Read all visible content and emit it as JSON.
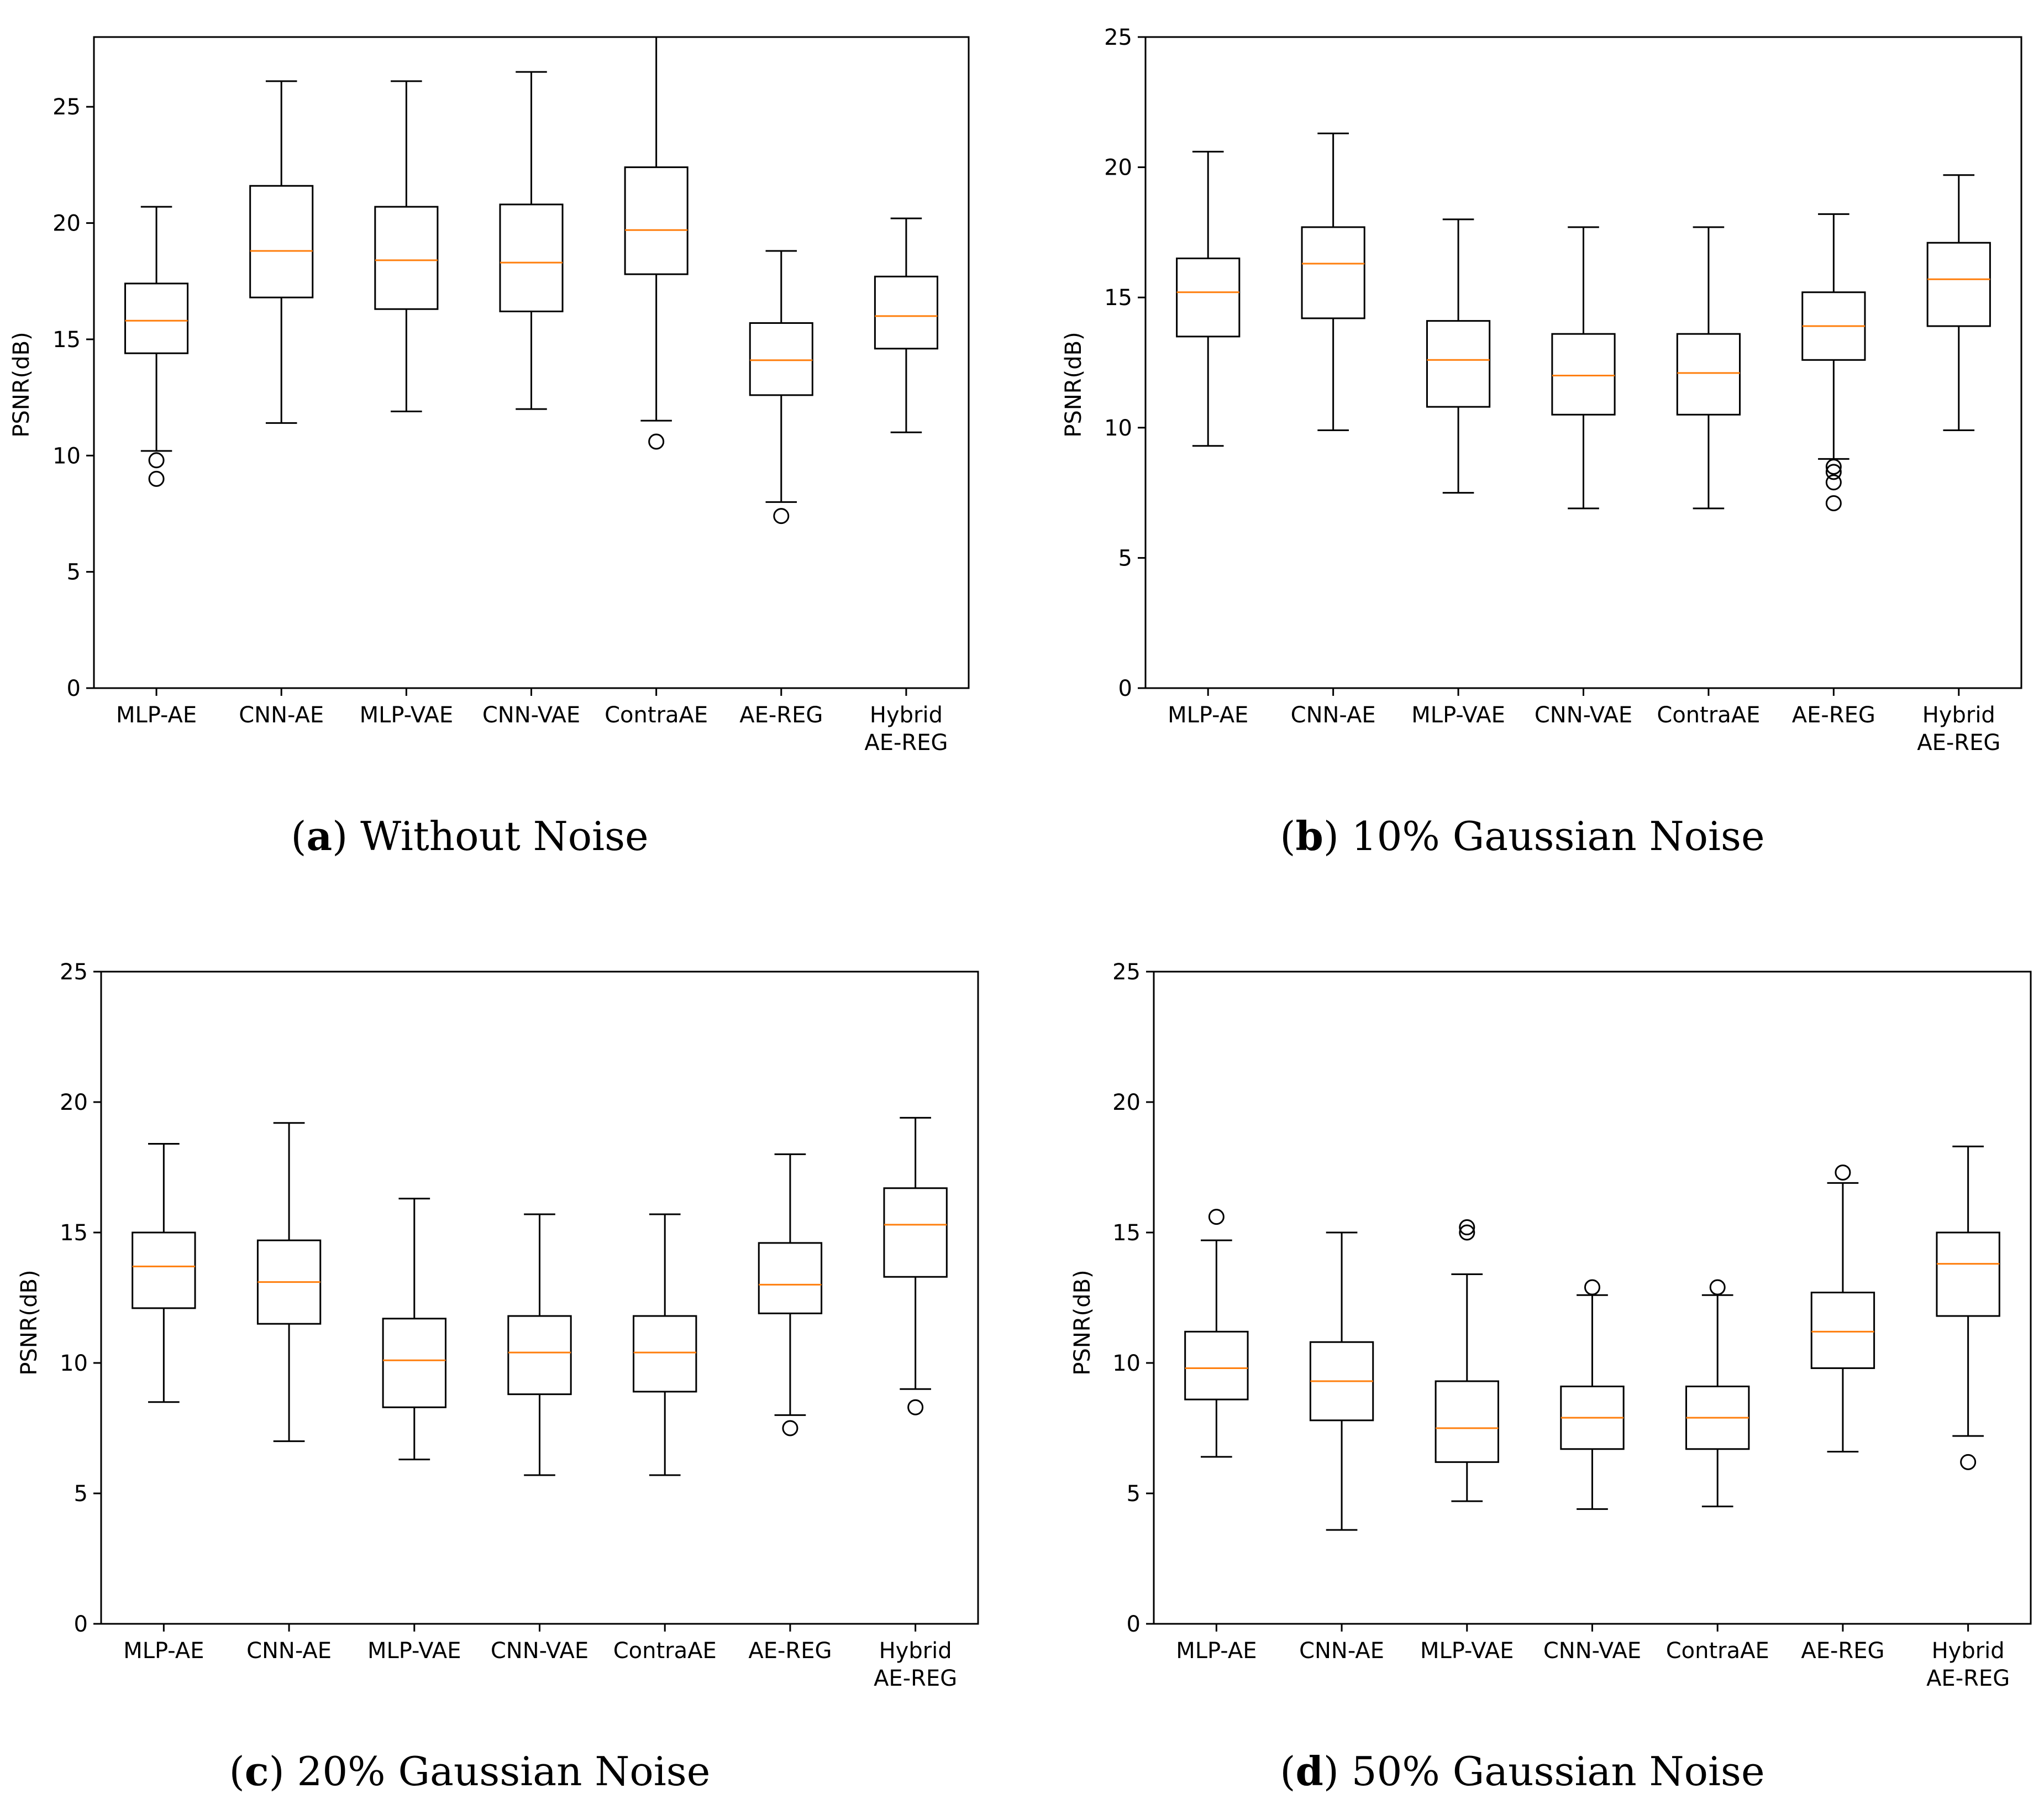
{
  "chart_data": [
    {
      "type": "boxplot",
      "caption": {
        "open": "(",
        "letter": "a",
        "close": ")",
        "text": " Without Noise"
      },
      "ylabel": "PSNR(dB)",
      "ylim": [
        0,
        28
      ],
      "yticks": [
        0,
        5,
        10,
        15,
        20,
        25
      ],
      "categories": [
        [
          "MLP-AE"
        ],
        [
          "CNN-AE"
        ],
        [
          "MLP-VAE"
        ],
        [
          "CNN-VAE"
        ],
        [
          "ContraAE"
        ],
        [
          "AE-REG"
        ],
        [
          "Hybrid",
          "AE-REG"
        ]
      ],
      "boxes": [
        {
          "whislo": 10.2,
          "q1": 14.4,
          "med": 15.8,
          "q3": 17.4,
          "whishi": 20.7,
          "fliers": [
            9.8,
            9.0
          ]
        },
        {
          "whislo": 11.4,
          "q1": 16.8,
          "med": 18.8,
          "q3": 21.6,
          "whishi": 26.1,
          "fliers": []
        },
        {
          "whislo": 11.9,
          "q1": 16.3,
          "med": 18.4,
          "q3": 20.7,
          "whishi": 26.1,
          "fliers": []
        },
        {
          "whislo": 12.0,
          "q1": 16.2,
          "med": 18.3,
          "q3": 20.8,
          "whishi": 26.5,
          "fliers": []
        },
        {
          "whislo": 11.5,
          "q1": 17.8,
          "med": 19.7,
          "q3": 22.4,
          "whishi": 28.0,
          "fliers": [
            10.6
          ]
        },
        {
          "whislo": 8.0,
          "q1": 12.6,
          "med": 14.1,
          "q3": 15.7,
          "whishi": 18.8,
          "fliers": [
            7.4
          ]
        },
        {
          "whislo": 11.0,
          "q1": 14.6,
          "med": 16.0,
          "q3": 17.7,
          "whishi": 20.2,
          "fliers": []
        }
      ]
    },
    {
      "type": "boxplot",
      "caption": {
        "open": "(",
        "letter": "b",
        "close": ")",
        "text": " 10% Gaussian Noise"
      },
      "ylabel": "PSNR(dB)",
      "ylim": [
        0,
        25
      ],
      "yticks": [
        0,
        5,
        10,
        15,
        20,
        25
      ],
      "categories": [
        [
          "MLP-AE"
        ],
        [
          "CNN-AE"
        ],
        [
          "MLP-VAE"
        ],
        [
          "CNN-VAE"
        ],
        [
          "ContraAE"
        ],
        [
          "AE-REG"
        ],
        [
          "Hybrid",
          "AE-REG"
        ]
      ],
      "boxes": [
        {
          "whislo": 9.3,
          "q1": 13.5,
          "med": 15.2,
          "q3": 16.5,
          "whishi": 20.6,
          "fliers": []
        },
        {
          "whislo": 9.9,
          "q1": 14.2,
          "med": 16.3,
          "q3": 17.7,
          "whishi": 21.3,
          "fliers": []
        },
        {
          "whislo": 7.5,
          "q1": 10.8,
          "med": 12.6,
          "q3": 14.1,
          "whishi": 18.0,
          "fliers": []
        },
        {
          "whislo": 6.9,
          "q1": 10.5,
          "med": 12.0,
          "q3": 13.6,
          "whishi": 17.7,
          "fliers": []
        },
        {
          "whislo": 6.9,
          "q1": 10.5,
          "med": 12.1,
          "q3": 13.6,
          "whishi": 17.7,
          "fliers": []
        },
        {
          "whislo": 8.8,
          "q1": 12.6,
          "med": 13.9,
          "q3": 15.2,
          "whishi": 18.2,
          "fliers": [
            8.5,
            8.3,
            7.9,
            7.1
          ]
        },
        {
          "whislo": 9.9,
          "q1": 13.9,
          "med": 15.7,
          "q3": 17.1,
          "whishi": 19.7,
          "fliers": []
        }
      ]
    },
    {
      "type": "boxplot",
      "caption": {
        "open": "(",
        "letter": "c",
        "close": ")",
        "text": " 20% Gaussian Noise"
      },
      "ylabel": "PSNR(dB)",
      "ylim": [
        0,
        25
      ],
      "yticks": [
        0,
        5,
        10,
        15,
        20,
        25
      ],
      "categories": [
        [
          "MLP-AE"
        ],
        [
          "CNN-AE"
        ],
        [
          "MLP-VAE"
        ],
        [
          "CNN-VAE"
        ],
        [
          "ContraAE"
        ],
        [
          "AE-REG"
        ],
        [
          "Hybrid",
          "AE-REG"
        ]
      ],
      "boxes": [
        {
          "whislo": 8.5,
          "q1": 12.1,
          "med": 13.7,
          "q3": 15.0,
          "whishi": 18.4,
          "fliers": []
        },
        {
          "whislo": 7.0,
          "q1": 11.5,
          "med": 13.1,
          "q3": 14.7,
          "whishi": 19.2,
          "fliers": []
        },
        {
          "whislo": 6.3,
          "q1": 8.3,
          "med": 10.1,
          "q3": 11.7,
          "whishi": 16.3,
          "fliers": []
        },
        {
          "whislo": 5.7,
          "q1": 8.8,
          "med": 10.4,
          "q3": 11.8,
          "whishi": 15.7,
          "fliers": []
        },
        {
          "whislo": 5.7,
          "q1": 8.9,
          "med": 10.4,
          "q3": 11.8,
          "whishi": 15.7,
          "fliers": []
        },
        {
          "whislo": 8.0,
          "q1": 11.9,
          "med": 13.0,
          "q3": 14.6,
          "whishi": 18.0,
          "fliers": [
            7.5
          ]
        },
        {
          "whislo": 9.0,
          "q1": 13.3,
          "med": 15.3,
          "q3": 16.7,
          "whishi": 19.4,
          "fliers": [
            8.3
          ]
        }
      ]
    },
    {
      "type": "boxplot",
      "caption": {
        "open": "(",
        "letter": "d",
        "close": ")",
        "text": " 50% Gaussian Noise"
      },
      "ylabel": "PSNR(dB)",
      "ylim": [
        0,
        25
      ],
      "yticks": [
        0,
        5,
        10,
        15,
        20,
        25
      ],
      "categories": [
        [
          "MLP-AE"
        ],
        [
          "CNN-AE"
        ],
        [
          "MLP-VAE"
        ],
        [
          "CNN-VAE"
        ],
        [
          "ContraAE"
        ],
        [
          "AE-REG"
        ],
        [
          "Hybrid",
          "AE-REG"
        ]
      ],
      "boxes": [
        {
          "whislo": 6.4,
          "q1": 8.6,
          "med": 9.8,
          "q3": 11.2,
          "whishi": 14.7,
          "fliers": [
            15.6
          ]
        },
        {
          "whislo": 3.6,
          "q1": 7.8,
          "med": 9.3,
          "q3": 10.8,
          "whishi": 15.0,
          "fliers": []
        },
        {
          "whislo": 4.7,
          "q1": 6.2,
          "med": 7.5,
          "q3": 9.3,
          "whishi": 13.4,
          "fliers": [
            15.0,
            15.2
          ]
        },
        {
          "whislo": 4.4,
          "q1": 6.7,
          "med": 7.9,
          "q3": 9.1,
          "whishi": 12.6,
          "fliers": [
            12.9
          ]
        },
        {
          "whislo": 4.5,
          "q1": 6.7,
          "med": 7.9,
          "q3": 9.1,
          "whishi": 12.6,
          "fliers": [
            12.9
          ]
        },
        {
          "whislo": 6.6,
          "q1": 9.8,
          "med": 11.2,
          "q3": 12.7,
          "whishi": 16.9,
          "fliers": [
            17.3
          ]
        },
        {
          "whislo": 7.2,
          "q1": 11.8,
          "med": 13.8,
          "q3": 15.0,
          "whishi": 18.3,
          "fliers": [
            6.2
          ]
        }
      ]
    }
  ],
  "colors": {
    "median": "#ff7f0e",
    "line": "#000000",
    "background": "#ffffff"
  }
}
